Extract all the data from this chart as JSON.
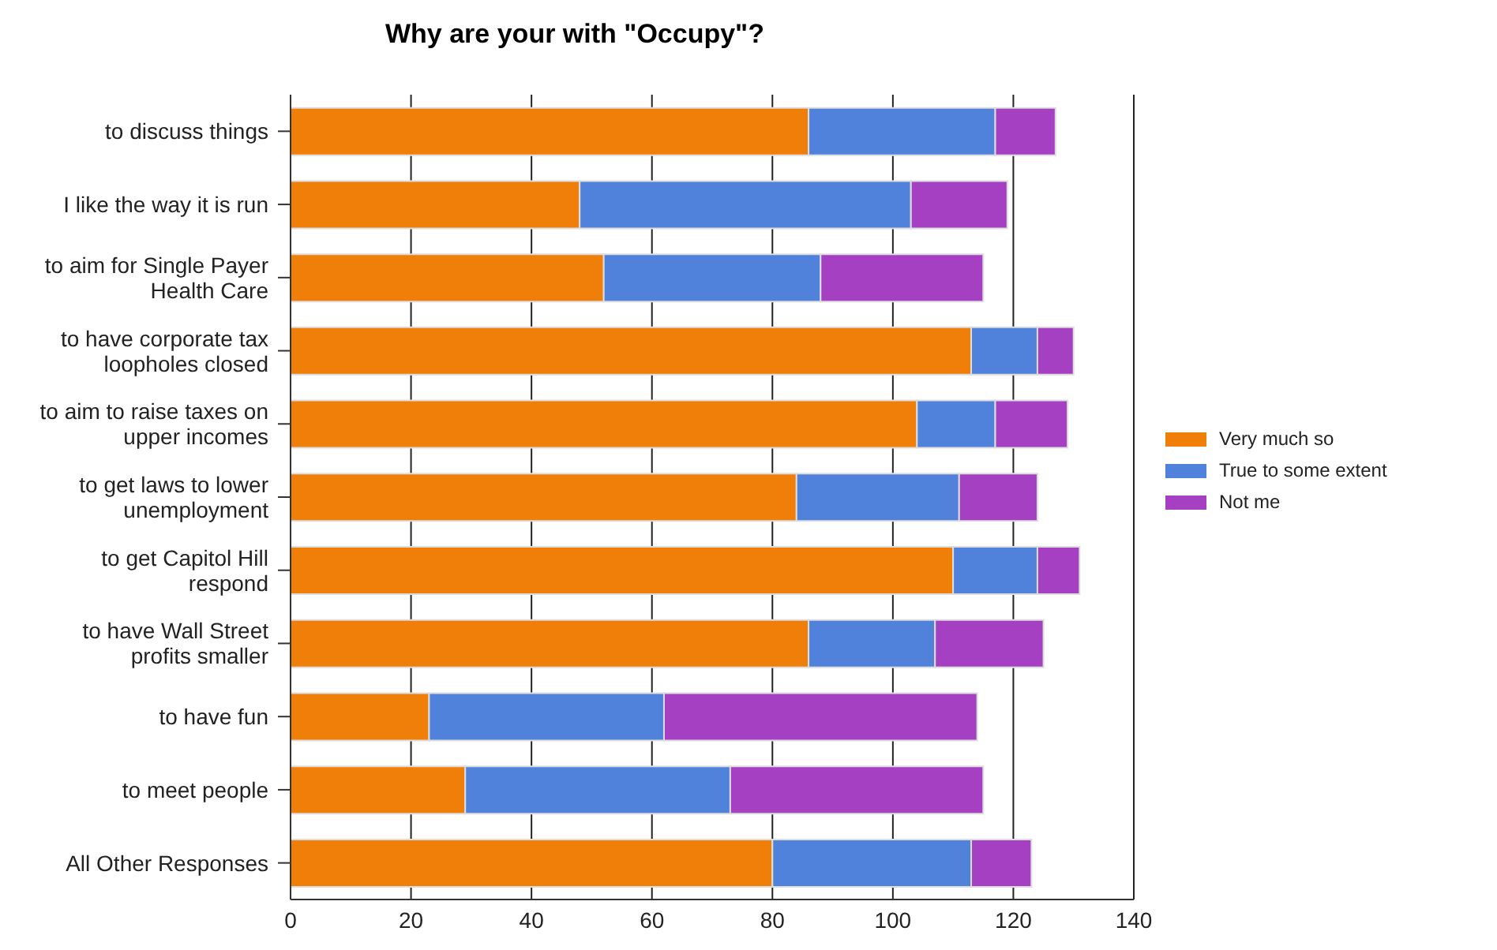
{
  "chart_data": {
    "type": "bar",
    "title": "Why are your with \"Occupy\"?",
    "orientation": "horizontal",
    "stacked": true,
    "categories": [
      "to discuss things",
      "I like the way it is run",
      "to aim for Single Payer Health Care",
      "to have corporate tax loopholes closed",
      "to aim to raise taxes on upper incomes",
      "to get laws to lower unemployment",
      "to get Capitol Hill respond",
      "to have Wall Street profits smaller",
      "to have fun",
      "to meet people",
      "All Other Responses"
    ],
    "series": [
      {
        "name": "Very much so",
        "color": "#f07f09",
        "values": [
          86,
          48,
          52,
          113,
          104,
          84,
          110,
          86,
          23,
          29,
          80
        ]
      },
      {
        "name": "True to some extent",
        "color": "#5182db",
        "values": [
          31,
          55,
          36,
          11,
          13,
          27,
          14,
          21,
          39,
          44,
          33
        ]
      },
      {
        "name": "Not me",
        "color": "#a640c2",
        "values": [
          10,
          16,
          27,
          6,
          12,
          13,
          7,
          18,
          52,
          42,
          10
        ]
      }
    ],
    "xlim": [
      0,
      140
    ],
    "xticks": [
      0,
      20,
      40,
      60,
      80,
      100,
      120,
      140
    ],
    "grid": "x",
    "legend": "right"
  }
}
